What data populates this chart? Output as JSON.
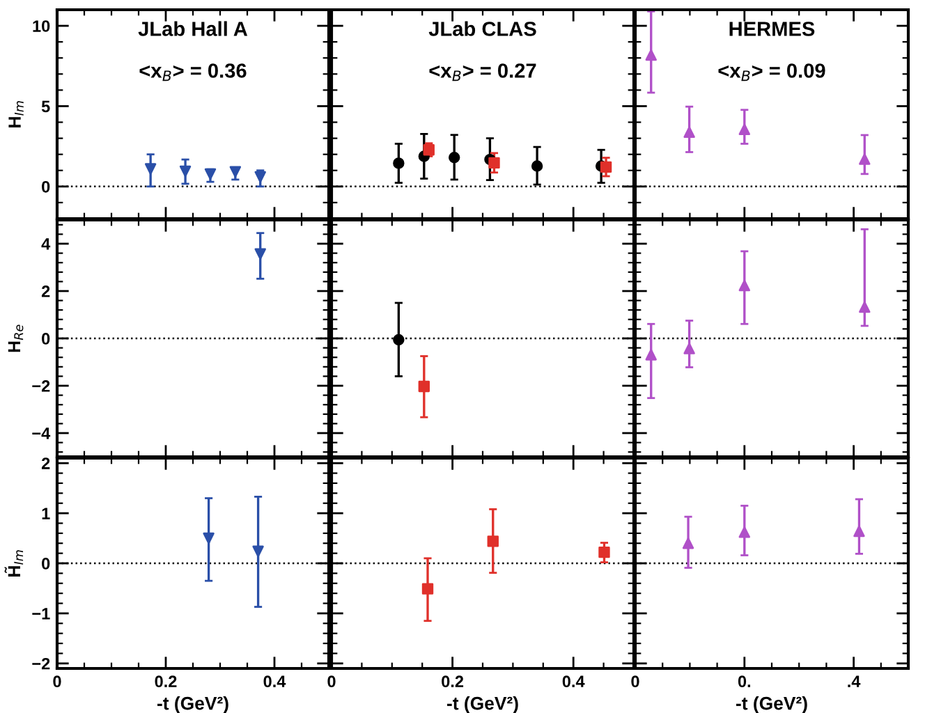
{
  "chart_data": [
    {
      "type": "scatter",
      "annotations": [
        "JLab Hall A",
        "<x$_{B}$> = 0.36"
      ],
      "ylabel": "H$_{Im}$",
      "xlim": [
        0,
        0.5
      ],
      "ylim": [
        -2,
        11
      ],
      "xticks": [
        0,
        0.2,
        0.4
      ],
      "yticks": [
        0,
        5,
        10
      ],
      "tick_labels": "y",
      "grid": false,
      "ref_lines": [
        {
          "axis": "y",
          "value": 0,
          "line_style": "dotted"
        }
      ],
      "series": [
        {
          "color": "#2a4fa8",
          "marker": "triangle_down",
          "x": [
            0.172,
            0.236,
            0.282,
            0.328,
            0.374
          ],
          "values": [
            1.1,
            0.95,
            0.78,
            0.92,
            0.6
          ],
          "errors": [
            [
              0.0,
              2.0
            ],
            [
              0.17,
              1.68
            ],
            [
              0.29,
              1.07
            ],
            [
              0.43,
              1.16
            ],
            [
              0.0,
              1.0
            ]
          ]
        }
      ]
    },
    {
      "type": "scatter",
      "annotations": [
        "JLab CLAS",
        "<x$_{B}$> = 0.27"
      ],
      "xlim": [
        0,
        0.5
      ],
      "ylim": [
        -2,
        11
      ],
      "xticks": [
        0,
        0.2,
        0.4
      ],
      "yticks": [
        0,
        5,
        10
      ],
      "tick_labels": false,
      "grid": false,
      "ref_lines": [
        {
          "axis": "y",
          "value": 0,
          "line_style": "dotted"
        }
      ],
      "series": [
        {
          "color": "#000000",
          "marker": "circle",
          "x": [
            0.111,
            0.153,
            0.203,
            0.262,
            0.34,
            0.446
          ],
          "values": [
            1.45,
            1.88,
            1.8,
            1.68,
            1.27,
            1.27
          ],
          "errors": [
            [
              0.23,
              2.66
            ],
            [
              0.49,
              3.27
            ],
            [
              0.43,
              3.21
            ],
            [
              0.4,
              3.0
            ],
            [
              0.12,
              2.46
            ],
            [
              0.23,
              2.28
            ]
          ]
        },
        {
          "color": "#e0302a",
          "marker": "square",
          "x": [
            0.161,
            0.269,
            0.454
          ],
          "values": [
            2.28,
            1.47,
            1.21
          ],
          "errors": [
            [
              1.88,
              2.69
            ],
            [
              0.87,
              2.08
            ],
            [
              0.64,
              1.79
            ]
          ]
        }
      ]
    },
    {
      "type": "scatter",
      "annotations": [
        "HERMES",
        "<x$_{B}$> = 0.09"
      ],
      "xlim": [
        0,
        0.5
      ],
      "ylim": [
        -2,
        11
      ],
      "xticks": [
        0,
        0.2,
        0.4
      ],
      "yticks": [
        0,
        5,
        10
      ],
      "tick_labels": false,
      "grid": false,
      "ref_lines": [
        {
          "axis": "y",
          "value": 0,
          "line_style": "dotted"
        }
      ],
      "series": [
        {
          "color": "#b050c8",
          "marker": "triangle",
          "x": [
            0.029,
            0.099,
            0.2,
            0.42
          ],
          "values": [
            8.18,
            3.38,
            3.55,
            1.7
          ],
          "errors": [
            [
              5.84,
              10.9
            ],
            [
              2.14,
              4.97
            ],
            [
              2.66,
              4.77
            ],
            [
              0.78,
              3.2
            ]
          ]
        }
      ]
    },
    {
      "type": "scatter",
      "ylabel": "H$_{Re}$",
      "xlim": [
        0,
        0.5
      ],
      "ylim": [
        -5,
        5
      ],
      "xticks": [
        0,
        0.2,
        0.4
      ],
      "yticks": [
        -4,
        -2,
        0,
        2,
        4
      ],
      "tick_labels": "y",
      "grid": false,
      "ref_lines": [
        {
          "axis": "y",
          "value": 0,
          "line_style": "dotted"
        }
      ],
      "series": [
        {
          "color": "#2a4fa8",
          "marker": "triangle_down",
          "x": [
            0.374
          ],
          "values": [
            3.57
          ],
          "errors": [
            [
              2.52,
              4.45
            ]
          ]
        }
      ]
    },
    {
      "type": "scatter",
      "xlim": [
        0,
        0.5
      ],
      "ylim": [
        -5,
        5
      ],
      "xticks": [
        0,
        0.2,
        0.4
      ],
      "yticks": [
        -4,
        -2,
        0,
        2,
        4
      ],
      "tick_labels": false,
      "grid": false,
      "ref_lines": [
        {
          "axis": "y",
          "value": 0,
          "line_style": "dotted"
        }
      ],
      "series": [
        {
          "color": "#000000",
          "marker": "circle",
          "x": [
            0.111
          ],
          "values": [
            -0.06
          ],
          "errors": [
            [
              -1.6,
              1.5
            ]
          ]
        },
        {
          "color": "#e0302a",
          "marker": "square",
          "x": [
            0.153
          ],
          "values": [
            -2.03
          ],
          "errors": [
            [
              -3.33,
              -0.75
            ]
          ]
        }
      ]
    },
    {
      "type": "scatter",
      "xlim": [
        0,
        0.5
      ],
      "ylim": [
        -5,
        5
      ],
      "xticks": [
        0,
        0.2,
        0.4
      ],
      "yticks": [
        -4,
        -2,
        0,
        2,
        4
      ],
      "tick_labels": false,
      "grid": false,
      "ref_lines": [
        {
          "axis": "y",
          "value": 0,
          "line_style": "dotted"
        }
      ],
      "series": [
        {
          "color": "#b050c8",
          "marker": "triangle",
          "x": [
            0.029,
            0.099,
            0.2,
            0.42
          ],
          "values": [
            -0.69,
            -0.43,
            2.23,
            1.32
          ],
          "errors": [
            [
              -2.52,
              0.61
            ],
            [
              -1.22,
              0.75
            ],
            [
              0.61,
              3.68
            ],
            [
              0.53,
              4.61
            ]
          ]
        }
      ]
    },
    {
      "type": "scatter",
      "ylabel": "H̃$_{Im}$",
      "xlabel": "-t (GeV²)",
      "xlim": [
        0,
        0.5
      ],
      "ylim": [
        -2.1,
        2.1
      ],
      "xticks": [
        0,
        0.2,
        0.4
      ],
      "yticks": [
        -2,
        -1,
        0,
        1,
        2
      ],
      "grid": false,
      "ref_lines": [
        {
          "axis": "y",
          "value": 0,
          "line_style": "dotted"
        }
      ],
      "series": [
        {
          "color": "#2a4fa8",
          "marker": "triangle_down",
          "x": [
            0.279,
            0.37
          ],
          "values": [
            0.5,
            0.24
          ],
          "errors": [
            [
              -0.35,
              1.3
            ],
            [
              -0.87,
              1.33
            ]
          ]
        }
      ]
    },
    {
      "type": "scatter",
      "xlabel": "-t (GeV²)",
      "xlim": [
        0,
        0.5
      ],
      "ylim": [
        -2.1,
        2.1
      ],
      "xticks": [
        0,
        0.2,
        0.4
      ],
      "yticks": [
        -2,
        -1,
        0,
        1,
        2
      ],
      "tick_labels": "x",
      "grid": false,
      "ref_lines": [
        {
          "axis": "y",
          "value": 0,
          "line_style": "dotted"
        }
      ],
      "series": [
        {
          "color": "#e0302a",
          "marker": "square",
          "x": [
            0.159,
            0.267,
            0.451
          ],
          "values": [
            -0.51,
            0.44,
            0.22
          ],
          "errors": [
            [
              -1.15,
              0.1
            ],
            [
              -0.19,
              1.08
            ],
            [
              0.02,
              0.41
            ]
          ]
        }
      ]
    },
    {
      "type": "scatter",
      "xlabel": "-t (GeV²)",
      "xlim": [
        0,
        0.5
      ],
      "ylim": [
        -2.1,
        2.1
      ],
      "xticks": [
        0,
        {
          "value": 0.2,
          "label": "0."
        },
        {
          "value": 0.4,
          "label": ".4"
        }
      ],
      "yticks": [
        -2,
        -1,
        0,
        1,
        2
      ],
      "tick_labels": "x",
      "grid": false,
      "ref_lines": [
        {
          "axis": "y",
          "value": 0,
          "line_style": "dotted"
        }
      ],
      "series": [
        {
          "color": "#b050c8",
          "marker": "triangle",
          "x": [
            0.097,
            0.2,
            0.41
          ],
          "values": [
            0.4,
            0.62,
            0.64
          ],
          "errors": [
            [
              -0.09,
              0.93
            ],
            [
              0.16,
              1.15
            ],
            [
              0.19,
              1.28
            ]
          ]
        }
      ]
    }
  ]
}
